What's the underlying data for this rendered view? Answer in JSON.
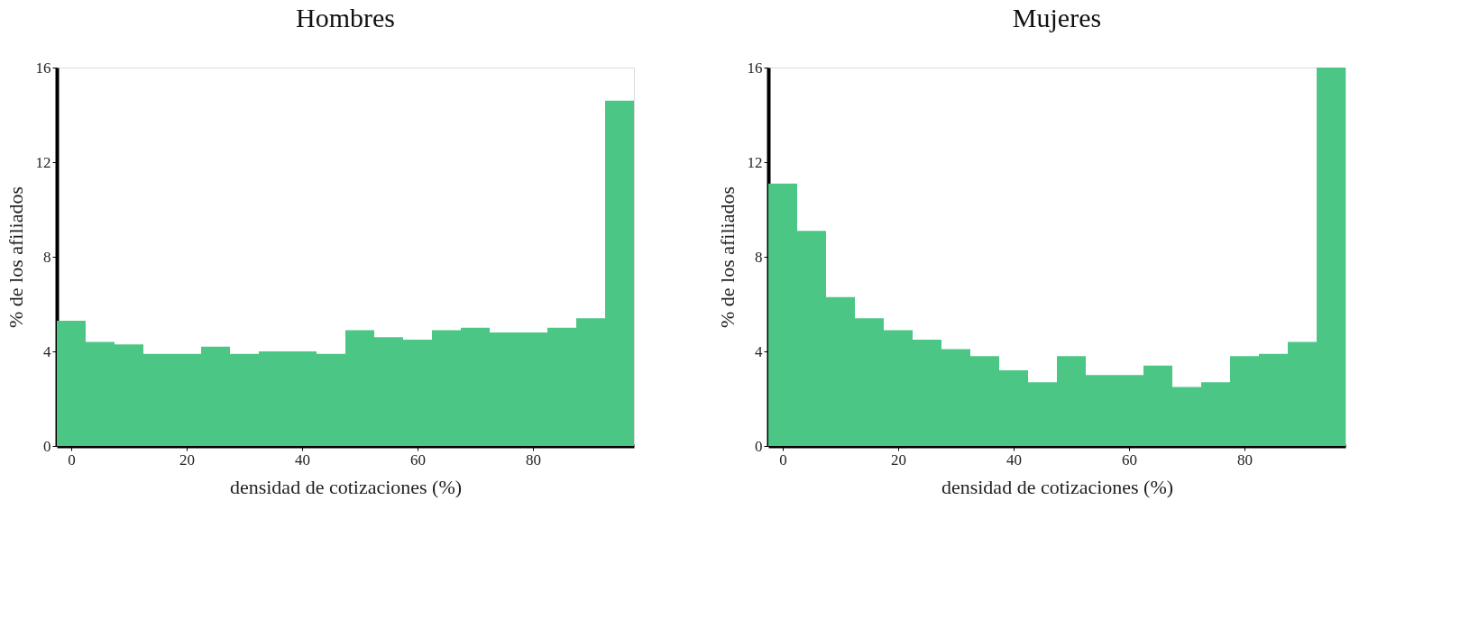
{
  "chart_data": [
    {
      "type": "histogram",
      "title": "Hombres",
      "xlabel": "densidad de cotizaciones (%)",
      "ylabel": "% de los afiliados",
      "color": "#4cc685",
      "grid": false,
      "bins": [
        -2.5,
        2.5,
        7.5,
        12.5,
        17.5,
        22.5,
        27.5,
        32.5,
        37.5,
        42.5,
        47.5,
        52.5,
        57.5,
        62.5,
        67.5,
        72.5,
        77.5,
        82.5,
        87.5,
        92.5,
        97.5
      ],
      "values": [
        5.3,
        4.4,
        4.3,
        3.9,
        3.9,
        4.2,
        3.9,
        4.0,
        4.0,
        3.9,
        4.9,
        4.6,
        4.5,
        4.9,
        5.0,
        4.8,
        4.8,
        5.0,
        5.4,
        14.6
      ],
      "xlim": [
        -2.5,
        97.5
      ],
      "ylim": [
        0,
        16
      ],
      "xticks": [
        0,
        20,
        40,
        60,
        80
      ],
      "yticks": [
        0,
        4,
        8,
        12,
        16
      ]
    },
    {
      "type": "histogram",
      "title": "Mujeres",
      "xlabel": "densidad de cotizaciones (%)",
      "ylabel": "% de los afiliados",
      "color": "#4cc685",
      "grid": false,
      "bins": [
        -2.5,
        2.5,
        7.5,
        12.5,
        17.5,
        22.5,
        27.5,
        32.5,
        37.5,
        42.5,
        47.5,
        52.5,
        57.5,
        62.5,
        67.5,
        72.5,
        77.5,
        82.5,
        87.5,
        92.5,
        97.5
      ],
      "values": [
        11.1,
        9.1,
        6.3,
        5.4,
        4.9,
        4.5,
        4.1,
        3.8,
        3.2,
        2.7,
        3.8,
        3.0,
        3.0,
        3.4,
        2.5,
        2.7,
        3.8,
        3.9,
        4.4,
        16.0
      ],
      "xlim": [
        -2.5,
        97.5
      ],
      "ylim": [
        0,
        16
      ],
      "xticks": [
        0,
        20,
        40,
        60,
        80
      ],
      "yticks": [
        0,
        4,
        8,
        12,
        16
      ]
    }
  ]
}
